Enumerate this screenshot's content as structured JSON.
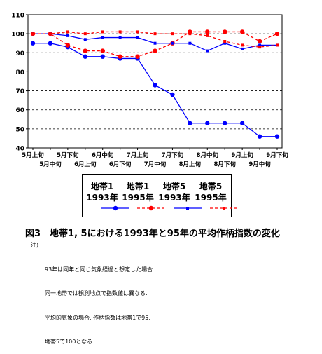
{
  "chart_data": {
    "type": "line",
    "categories": [
      "5月上旬",
      "5月中旬",
      "5月下旬",
      "6月上旬",
      "6月中旬",
      "6月下旬",
      "7月上旬",
      "7月中旬",
      "7月下旬",
      "8月上旬",
      "8月中旬",
      "8月下旬",
      "9月上旬",
      "9月中旬",
      "9月下旬"
    ],
    "ylim": [
      40,
      110
    ],
    "yticks": [
      40,
      50,
      60,
      70,
      80,
      90,
      100,
      110
    ],
    "grid": "horizontal dashed",
    "series": [
      {
        "name": "地帯1 1993年",
        "color": "#0000ff",
        "line": "solid",
        "marker": "circle",
        "values": [
          95,
          95,
          93,
          88,
          88,
          87,
          87,
          73,
          68,
          53,
          53,
          53,
          53,
          46,
          46
        ]
      },
      {
        "name": "地帯1 1995年",
        "color": "#ff0000",
        "line": "dashed",
        "marker": "circle",
        "values": [
          100,
          100,
          94,
          91,
          91,
          88,
          88,
          91,
          95,
          101,
          101,
          101,
          101,
          96,
          100
        ]
      },
      {
        "name": "地帯5 1993年",
        "color": "#0000ff",
        "line": "solid",
        "marker": "square",
        "values": [
          100,
          100,
          99,
          97,
          98,
          98,
          98,
          95,
          95,
          95,
          91,
          95,
          92,
          94,
          94
        ]
      },
      {
        "name": "地帯5 1995年",
        "color": "#ff0000",
        "line": "dashed",
        "marker": "square",
        "values": [
          100,
          100,
          101,
          100,
          101,
          101,
          101,
          100,
          100,
          100,
          99,
          96,
          94,
          93,
          94
        ]
      }
    ]
  },
  "legend": {
    "items": [
      {
        "line1": "地帯1",
        "line2": "1993年"
      },
      {
        "line1": "地帯1",
        "line2": "1995年"
      },
      {
        "line1": "地帯5",
        "line2": "1993年"
      },
      {
        "line1": "地帯5",
        "line2": "1995年"
      }
    ]
  },
  "caption": "図3　地帯1, 5における1993年と95年の平均作柄指数の変化",
  "notes": {
    "head": "注)",
    "lines": [
      "93年は同年と同じ気象経過と想定した場合.",
      "同一地帯では観測地点で指数値は異なる.",
      "平均的気象の場合, 作柄指数は地帯1で95,",
      "地帯5で100となる."
    ]
  }
}
